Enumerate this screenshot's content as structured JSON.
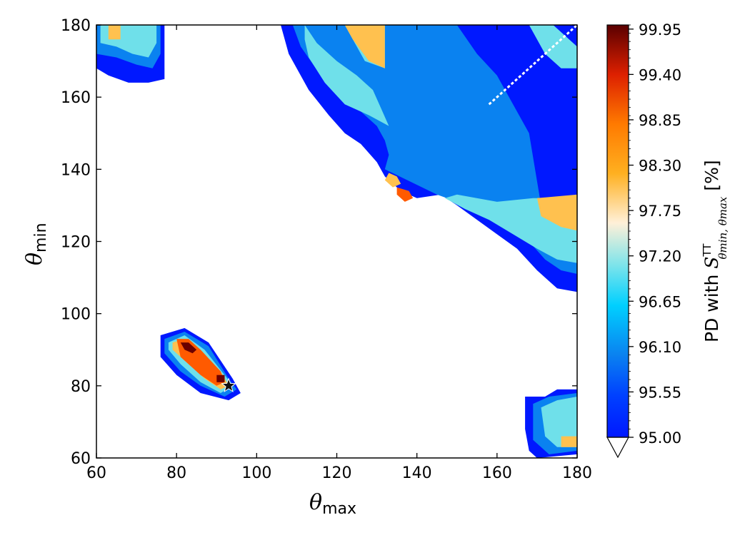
{
  "chart_data": {
    "type": "heatmap",
    "xlabel": "θ",
    "xlabel_sub": "max",
    "ylabel": "θ",
    "ylabel_sub": "min",
    "xlim": [
      60,
      180
    ],
    "ylim": [
      60,
      180
    ],
    "x_ticks": [
      "60",
      "80",
      "100",
      "120",
      "140",
      "160",
      "180"
    ],
    "y_ticks": [
      "60",
      "80",
      "100",
      "120",
      "140",
      "160",
      "180"
    ],
    "colorbar": {
      "label_prefix": "PD with ",
      "label_symbol": "S",
      "label_sup": "TT",
      "label_sub": "θmin, θmax",
      "label_suffix": " [%]",
      "range": [
        95.0,
        100.0
      ],
      "ticks": [
        "95.00",
        "95.55",
        "96.10",
        "96.65",
        "97.20",
        "97.75",
        "98.30",
        "98.85",
        "99.40",
        "99.95"
      ],
      "extend": "min"
    },
    "colors": {
      "level_95": "#0018ff",
      "level_96": "#0a82f0",
      "level_97": "#6fe0ea",
      "level_98": "#ffc14f",
      "level_99": "#ff5a00",
      "level_100": "#6b0000",
      "marker": "#111111"
    },
    "best_fit_marker": {
      "x": 93,
      "y": 80,
      "symbol": "star"
    },
    "regions": [
      {
        "level": 95,
        "polygon": [
          [
            60,
            168
          ],
          [
            63,
            166
          ],
          [
            68,
            164
          ],
          [
            73,
            164
          ],
          [
            77,
            165
          ],
          [
            77,
            180
          ],
          [
            60,
            180
          ]
        ]
      },
      {
        "level": 96,
        "polygon": [
          [
            60,
            172
          ],
          [
            65,
            171
          ],
          [
            70,
            169
          ],
          [
            74,
            168
          ],
          [
            76,
            172
          ],
          [
            76,
            180
          ],
          [
            60,
            180
          ]
        ]
      },
      {
        "level": 97,
        "polygon": [
          [
            61,
            175
          ],
          [
            65,
            174
          ],
          [
            69,
            172
          ],
          [
            73,
            171
          ],
          [
            75,
            175
          ],
          [
            75,
            180
          ],
          [
            61,
            180
          ]
        ]
      },
      {
        "level": 98,
        "polygon": [
          [
            63,
            176
          ],
          [
            66,
            176
          ],
          [
            66,
            180
          ],
          [
            63,
            180
          ]
        ]
      },
      {
        "level": 95,
        "polygon": [
          [
            106,
            180
          ],
          [
            108,
            172
          ],
          [
            113,
            162
          ],
          [
            118,
            155
          ],
          [
            122,
            150
          ],
          [
            126,
            147
          ],
          [
            130,
            142
          ],
          [
            132,
            138
          ],
          [
            136,
            134
          ],
          [
            140,
            132
          ],
          [
            146,
            133
          ],
          [
            150,
            130
          ],
          [
            155,
            126
          ],
          [
            160,
            122
          ],
          [
            165,
            118
          ],
          [
            170,
            112
          ],
          [
            175,
            107
          ],
          [
            180,
            106
          ],
          [
            180,
            180
          ]
        ]
      },
      {
        "level": 96,
        "polygon": [
          [
            109,
            180
          ],
          [
            111,
            174
          ],
          [
            116,
            166
          ],
          [
            121,
            160
          ],
          [
            126,
            156
          ],
          [
            130,
            152
          ],
          [
            132,
            148
          ],
          [
            133,
            144
          ],
          [
            132,
            140
          ],
          [
            145,
            133
          ],
          [
            150,
            131
          ],
          [
            156,
            127
          ],
          [
            162,
            124
          ],
          [
            168,
            120
          ],
          [
            172,
            115
          ],
          [
            176,
            112
          ],
          [
            180,
            111
          ],
          [
            180,
            129
          ],
          [
            171,
            130
          ],
          [
            168,
            150
          ],
          [
            160,
            166
          ],
          [
            155,
            172
          ],
          [
            150,
            180
          ]
        ]
      },
      {
        "level": 97,
        "polygon": [
          [
            112,
            180
          ],
          [
            115,
            175
          ],
          [
            120,
            170
          ],
          [
            125,
            166
          ],
          [
            129,
            162
          ],
          [
            131,
            157
          ],
          [
            133,
            152
          ],
          [
            128,
            155
          ],
          [
            122,
            158
          ],
          [
            117,
            164
          ],
          [
            113,
            171
          ],
          [
            112,
            176
          ]
        ]
      },
      {
        "level": 97,
        "polygon": [
          [
            122,
            180
          ],
          [
            132,
            180
          ],
          [
            132,
            168
          ],
          [
            127,
            170
          ]
        ]
      },
      {
        "level": 97,
        "polygon": [
          [
            147,
            132
          ],
          [
            152,
            129
          ],
          [
            158,
            126
          ],
          [
            164,
            122
          ],
          [
            170,
            118
          ],
          [
            175,
            115
          ],
          [
            180,
            114
          ],
          [
            180,
            132
          ],
          [
            169,
            132
          ],
          [
            160,
            131
          ],
          [
            150,
            133
          ]
        ]
      },
      {
        "level": 97,
        "polygon": [
          [
            168,
            180
          ],
          [
            174,
            180
          ],
          [
            180,
            174
          ],
          [
            180,
            168
          ],
          [
            176,
            168
          ],
          [
            172,
            172
          ]
        ]
      },
      {
        "level": 98,
        "polygon": [
          [
            122,
            180
          ],
          [
            132,
            180
          ],
          [
            132,
            168
          ],
          [
            128,
            170
          ],
          [
            124,
            176
          ]
        ]
      },
      {
        "level": 98,
        "polygon": [
          [
            170,
            132
          ],
          [
            180,
            133
          ],
          [
            180,
            123
          ],
          [
            176,
            124
          ],
          [
            171,
            127
          ]
        ]
      },
      {
        "level": 98,
        "polygon": [
          [
            133,
            139
          ],
          [
            135,
            138
          ],
          [
            136,
            136
          ],
          [
            134,
            135
          ],
          [
            132,
            137
          ]
        ]
      },
      {
        "level": 99,
        "polygon": [
          [
            135,
            135
          ],
          [
            138,
            134
          ],
          [
            139,
            132
          ],
          [
            137,
            131
          ],
          [
            135,
            133
          ]
        ]
      },
      {
        "level": 95,
        "polygon": [
          [
            76,
            94
          ],
          [
            82,
            96
          ],
          [
            88,
            92
          ],
          [
            94,
            82
          ],
          [
            96,
            78
          ],
          [
            93,
            76
          ],
          [
            86,
            78
          ],
          [
            80,
            83
          ],
          [
            76,
            88
          ]
        ]
      },
      {
        "level": 96,
        "polygon": [
          [
            77,
            93
          ],
          [
            82,
            95
          ],
          [
            88,
            91
          ],
          [
            93,
            82
          ],
          [
            95,
            79
          ],
          [
            92,
            77
          ],
          [
            86,
            80
          ],
          [
            81,
            84
          ],
          [
            77,
            89
          ]
        ]
      },
      {
        "level": 97,
        "polygon": [
          [
            78,
            92
          ],
          [
            82,
            94
          ],
          [
            87,
            90
          ],
          [
            92,
            83
          ],
          [
            94,
            80
          ],
          [
            91,
            78
          ],
          [
            86,
            81
          ],
          [
            81,
            86
          ],
          [
            78,
            90
          ]
        ]
      },
      {
        "level": 98,
        "polygon": [
          [
            79,
            92
          ],
          [
            82,
            93
          ],
          [
            86,
            90
          ],
          [
            91,
            84
          ],
          [
            93,
            80
          ],
          [
            91,
            79
          ],
          [
            87,
            82
          ],
          [
            82,
            87
          ],
          [
            79,
            90
          ]
        ]
      },
      {
        "level": 99,
        "polygon": [
          [
            80,
            93
          ],
          [
            83,
            93
          ],
          [
            86,
            90
          ],
          [
            91,
            84
          ],
          [
            92,
            81
          ],
          [
            90,
            80
          ],
          [
            86,
            83
          ],
          [
            81,
            88
          ]
        ]
      },
      {
        "level": 100,
        "polygon": [
          [
            81,
            92
          ],
          [
            83,
            92
          ],
          [
            85,
            90
          ],
          [
            84,
            89
          ],
          [
            82,
            90
          ]
        ]
      },
      {
        "level": 100,
        "polygon": [
          [
            90,
            83
          ],
          [
            92,
            83
          ],
          [
            92,
            81
          ],
          [
            90,
            81
          ]
        ]
      },
      {
        "level": 95,
        "polygon": [
          [
            167,
            77
          ],
          [
            172,
            77
          ],
          [
            175,
            79
          ],
          [
            180,
            79
          ],
          [
            180,
            61
          ],
          [
            170,
            60
          ],
          [
            168,
            62
          ],
          [
            167,
            68
          ]
        ]
      },
      {
        "level": 96,
        "polygon": [
          [
            169,
            75
          ],
          [
            173,
            77
          ],
          [
            180,
            78
          ],
          [
            180,
            62
          ],
          [
            173,
            61
          ],
          [
            169,
            65
          ]
        ]
      },
      {
        "level": 97,
        "polygon": [
          [
            171,
            74
          ],
          [
            175,
            76
          ],
          [
            180,
            77
          ],
          [
            180,
            63
          ],
          [
            175,
            63
          ],
          [
            172,
            66
          ]
        ]
      },
      {
        "level": 98,
        "polygon": [
          [
            176,
            66
          ],
          [
            180,
            66
          ],
          [
            180,
            63
          ],
          [
            176,
            63
          ]
        ]
      }
    ]
  }
}
